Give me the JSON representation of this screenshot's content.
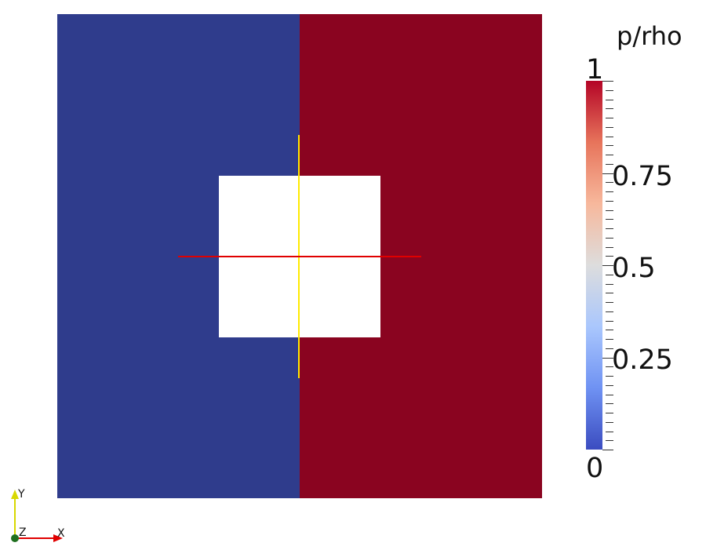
{
  "colors": {
    "domain_left": "#2F3C8C",
    "domain_right": "#8A0420",
    "obstacle": "#ffffff",
    "line_vertical": "#FFEA00",
    "line_horizontal": "#E00000",
    "axis_y": "#D8D800",
    "axis_x": "#E00000",
    "axis_origin": "#1F6F1F",
    "colormap": [
      "#3B4CC0",
      "#6F92F3",
      "#AAC7FD",
      "#DDDDDD",
      "#F7B89C",
      "#E7745B",
      "#B40426"
    ]
  },
  "colorbar": {
    "title": "p/rho",
    "min": 0,
    "max": 1,
    "labels": [
      {
        "value": 1,
        "text": "1"
      },
      {
        "value": 0.75,
        "text": "0.75"
      },
      {
        "value": 0.5,
        "text": "0.5"
      },
      {
        "value": 0.25,
        "text": "0.25"
      },
      {
        "value": 0,
        "text": "0"
      }
    ],
    "minor_tick_count": 40
  },
  "axes": {
    "x_label": "X",
    "y_label": "Y",
    "z_label": "Z"
  }
}
